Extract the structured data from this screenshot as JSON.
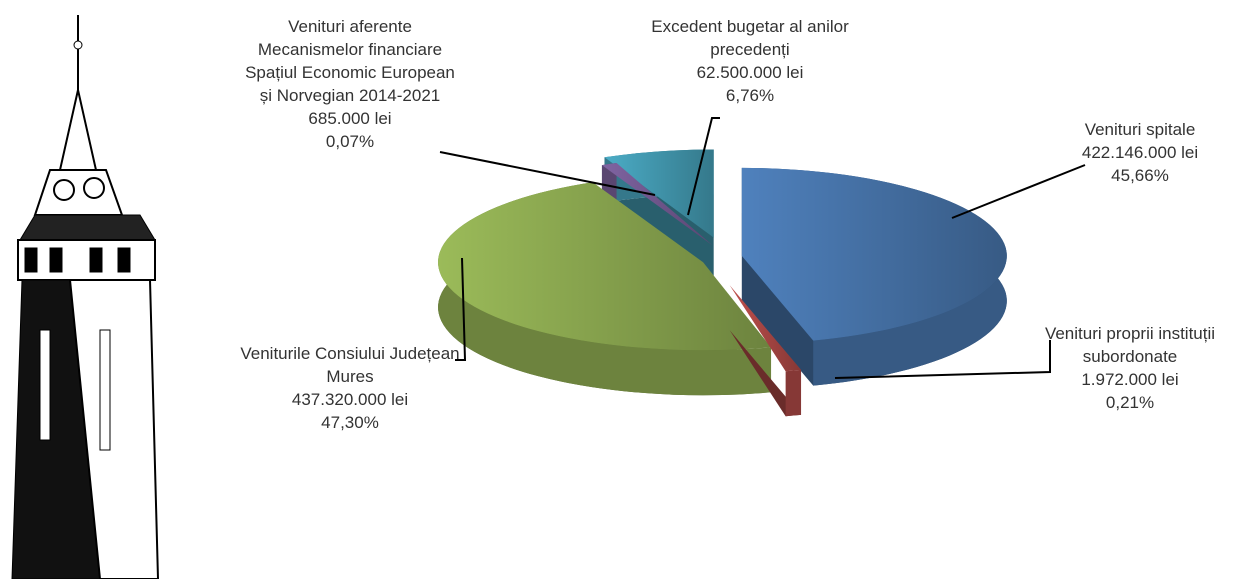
{
  "chart_data": {
    "type": "pie",
    "categories": [
      "Venituri spitale",
      "Venituri proprii instituții subordonate",
      "Veniturile Consiului Județean Mures",
      "Venituri aferente Mecanismelor financiare Spațiul Economic European și Norvegian 2014-2021",
      "Excedent bugetar al anilor precedenți"
    ],
    "values": [
      422146000,
      1972000,
      437320000,
      685000,
      62500000
    ],
    "value_labels": [
      "422.146.000 lei",
      "1.972.000 lei",
      "437.320.000 lei",
      "685.000 lei",
      "62.500.000 lei"
    ],
    "percents": [
      45.66,
      0.21,
      47.3,
      0.07,
      6.76
    ],
    "percent_labels": [
      "45,66%",
      "0,21%",
      "47,30%",
      "0,07%",
      "6,76%"
    ],
    "colors": [
      "#4f81bd",
      "#c0504d",
      "#9bbb59",
      "#8064a2",
      "#4bacc6"
    ]
  }
}
